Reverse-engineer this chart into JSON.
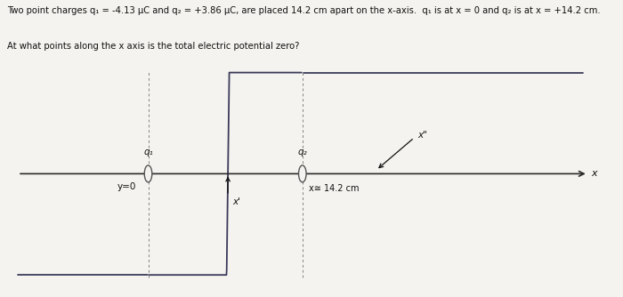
{
  "title_line1": "Two point charges q₁ = -4.13 μC and q₂ = +3.86 μC, are placed 14.2 cm apart on the x-axis.  q₁ is at x = 0 and q₂ is at x = +14.2 cm.",
  "title_line2": "At what points along the x axis is the total electric potential zero?",
  "q1": -4.13e-06,
  "q2": 3.86e-06,
  "x1_cm": 0.0,
  "x2_cm": 14.2,
  "label_q1": "q₁",
  "label_q2": "q₂",
  "label_y0": "y=0",
  "label_x_prime": "x'",
  "label_x2_pos": "x≅ 14.2 cm",
  "label_x_axis": "x",
  "background_color": "#f5f3ef",
  "line_color": "#3a3a5a",
  "axis_color": "#2a2a2a",
  "charge_circle_color": "#555555",
  "text_color": "#111111",
  "figsize": [
    7.0,
    3.34
  ],
  "dpi": 100,
  "x_display_min": -12,
  "x_display_max": 40,
  "y_display_min": -4.5,
  "y_display_max": 4.5,
  "scale": 0.00025,
  "clip_min": -4.2,
  "clip_max": 4.2
}
